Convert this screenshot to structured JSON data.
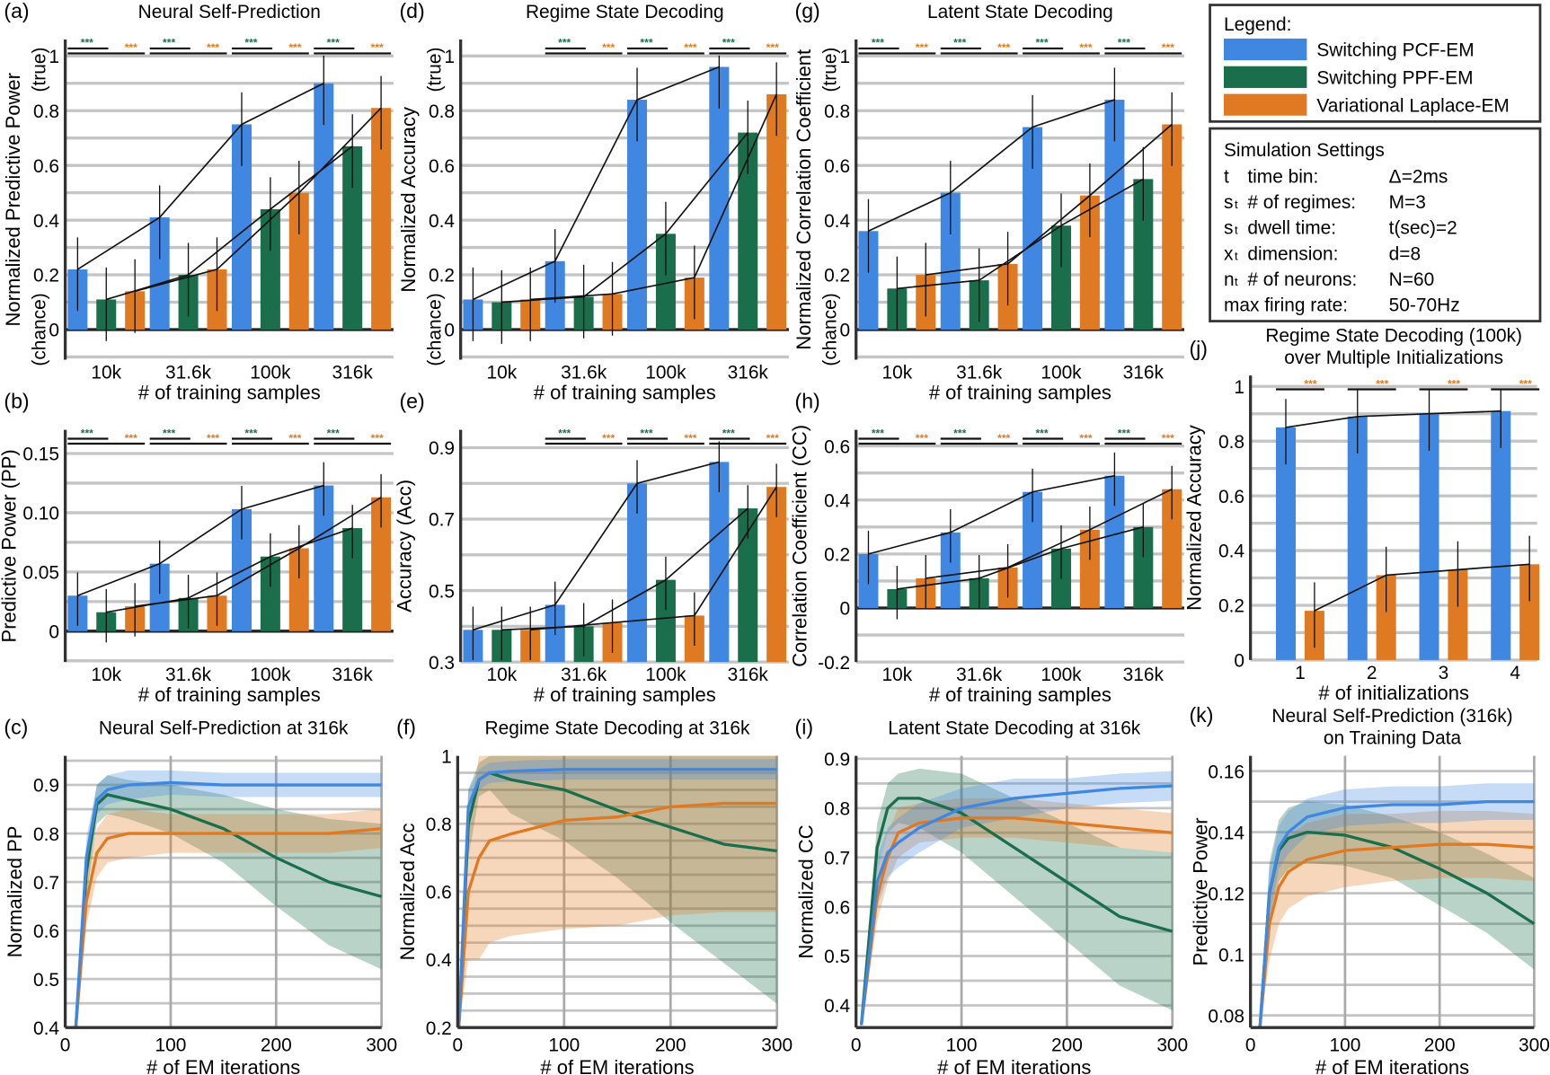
{
  "colors": {
    "blue": "#3f87e0",
    "green": "#1b6e4c",
    "orange": "#e07a22",
    "grid": "#c4c4c4"
  },
  "legend": {
    "title": "Legend:",
    "items": [
      {
        "label": "Switching PCF-EM",
        "color": "#3f87e0"
      },
      {
        "label": "Switching PPF-EM",
        "color": "#1b6e4c"
      },
      {
        "label": "Variational Laplace-EM",
        "color": "#e07a22"
      }
    ]
  },
  "settings": {
    "title": "Simulation Settings",
    "rows": [
      {
        "sym": "t",
        "sub": "",
        "label": "time bin:",
        "value": "Δ=2ms"
      },
      {
        "sym": "s",
        "sub": "t",
        "label": "# of regimes:",
        "value": "M=3"
      },
      {
        "sym": "s",
        "sub": "t",
        "label": "dwell time:",
        "value": "t(sec)=2"
      },
      {
        "sym": "x",
        "sub": "t",
        "label": "dimension:",
        "value": "d=8"
      },
      {
        "sym": "n",
        "sub": "t",
        "label": "# of neurons:",
        "value": "N=60"
      },
      {
        "sym": "",
        "sub": "",
        "label": "max firing rate:",
        "value": "50-70Hz"
      }
    ]
  },
  "chart_data": [
    {
      "id": "a",
      "panel_label": "(a)",
      "type": "bar",
      "title": "Neural Self-Prediction",
      "xlabel": "# of training samples",
      "ylabel": "Normalized Predictive Power",
      "ylabel_top": "(true)",
      "ylabel_bottom": "(chance)",
      "categories": [
        "10k",
        "31.6k",
        "100k",
        "316k"
      ],
      "ylim": [
        -0.11,
        1.06
      ],
      "grid_step": 0.1,
      "yticks": [
        0,
        0.2,
        0.4,
        0.6,
        0.8,
        1
      ],
      "ytick_labels": [
        "0",
        "0.2",
        "0.4",
        "0.6",
        "0.8",
        "1"
      ],
      "series": [
        {
          "name": "Switching PCF-EM",
          "values": [
            0.22,
            0.41,
            0.75,
            0.9
          ]
        },
        {
          "name": "Switching PPF-EM",
          "values": [
            0.11,
            0.2,
            0.44,
            0.67
          ]
        },
        {
          "name": "Variational Laplace-EM",
          "values": [
            0.14,
            0.22,
            0.5,
            0.81
          ]
        }
      ],
      "significance": [
        "***",
        "***",
        "***",
        "***"
      ]
    },
    {
      "id": "d",
      "panel_label": "(d)",
      "type": "bar",
      "title": "Regime State Decoding",
      "xlabel": "# of training samples",
      "ylabel": "Normalized Accuracy",
      "ylabel_top": "(true)",
      "ylabel_bottom": "(chance)",
      "categories": [
        "10k",
        "31.6k",
        "100k",
        "316k"
      ],
      "ylim": [
        -0.11,
        1.06
      ],
      "grid_step": 0.1,
      "yticks": [
        0,
        0.2,
        0.4,
        0.6,
        0.8,
        1
      ],
      "ytick_labels": [
        "0",
        "0.2",
        "0.4",
        "0.6",
        "0.8",
        "1"
      ],
      "series": [
        {
          "name": "Switching PCF-EM",
          "values": [
            0.11,
            0.25,
            0.84,
            0.96
          ]
        },
        {
          "name": "Switching PPF-EM",
          "values": [
            0.1,
            0.12,
            0.35,
            0.72
          ]
        },
        {
          "name": "Variational Laplace-EM",
          "values": [
            0.11,
            0.13,
            0.19,
            0.86
          ]
        }
      ],
      "significance": [
        "",
        "***",
        "***",
        "***"
      ]
    },
    {
      "id": "g",
      "panel_label": "(g)",
      "type": "bar",
      "title": "Latent State Decoding",
      "xlabel": "# of training samples",
      "ylabel": "Normalized Correlation Coefficient",
      "ylabel_top": "(true)",
      "ylabel_bottom": "(chance)",
      "categories": [
        "10k",
        "31.6k",
        "100k",
        "316k"
      ],
      "ylim": [
        -0.11,
        1.06
      ],
      "grid_step": 0.1,
      "yticks": [
        0,
        0.2,
        0.4,
        0.6,
        0.8,
        1
      ],
      "ytick_labels": [
        "0",
        "0.2",
        "0.4",
        "0.6",
        "0.8",
        "1"
      ],
      "series": [
        {
          "name": "Switching PCF-EM",
          "values": [
            0.36,
            0.5,
            0.74,
            0.84
          ]
        },
        {
          "name": "Switching PPF-EM",
          "values": [
            0.15,
            0.18,
            0.38,
            0.55
          ]
        },
        {
          "name": "Variational Laplace-EM",
          "values": [
            0.2,
            0.24,
            0.49,
            0.75
          ]
        }
      ],
      "significance": [
        "***",
        "***",
        "***",
        "***"
      ]
    },
    {
      "id": "b",
      "panel_label": "(b)",
      "type": "bar",
      "title": "",
      "xlabel": "# of training samples",
      "ylabel": "Predictive Power (PP)",
      "categories": [
        "10k",
        "31.6k",
        "100k",
        "316k"
      ],
      "ylim": [
        -0.026,
        0.17
      ],
      "grid_step": 0.025,
      "yticks": [
        0,
        0.05,
        0.1,
        0.15
      ],
      "ytick_labels": [
        "0",
        "0.05",
        "0.10",
        "0.15"
      ],
      "series": [
        {
          "name": "Switching PCF-EM",
          "values": [
            0.03,
            0.057,
            0.103,
            0.123
          ]
        },
        {
          "name": "Switching PPF-EM",
          "values": [
            0.016,
            0.028,
            0.063,
            0.087
          ]
        },
        {
          "name": "Variational Laplace-EM",
          "values": [
            0.021,
            0.03,
            0.07,
            0.113
          ]
        }
      ],
      "significance": [
        "***",
        "***",
        "***",
        "***"
      ]
    },
    {
      "id": "e",
      "panel_label": "(e)",
      "type": "bar",
      "title": "",
      "xlabel": "# of training samples",
      "ylabel": "Accuracy (Acc)",
      "categories": [
        "10k",
        "31.6k",
        "100k",
        "316k"
      ],
      "ylim": [
        0.3,
        0.95
      ],
      "grid_step": 0.1,
      "yticks": [
        0.3,
        0.5,
        0.7,
        0.9
      ],
      "ytick_labels": [
        "0.3",
        "0.5",
        "0.7",
        "0.9"
      ],
      "series": [
        {
          "name": "Switching PCF-EM",
          "values": [
            0.39,
            0.46,
            0.8,
            0.86
          ]
        },
        {
          "name": "Switching PPF-EM",
          "values": [
            0.39,
            0.4,
            0.53,
            0.73
          ]
        },
        {
          "name": "Variational Laplace-EM",
          "values": [
            0.39,
            0.41,
            0.43,
            0.79
          ]
        }
      ],
      "significance": [
        "",
        "***",
        "***",
        "***"
      ]
    },
    {
      "id": "h",
      "panel_label": "(h)",
      "type": "bar",
      "title": "",
      "xlabel": "# of training samples",
      "ylabel": "Correlation Coefficient (CC)",
      "categories": [
        "10k",
        "31.6k",
        "100k",
        "316k"
      ],
      "ylim": [
        -0.2,
        0.66
      ],
      "grid_step": 0.1,
      "yticks": [
        -0.2,
        0,
        0.2,
        0.4,
        0.6
      ],
      "ytick_labels": [
        "-0.2",
        "0",
        "0.2",
        "0.4",
        "0.6"
      ],
      "series": [
        {
          "name": "Switching PCF-EM",
          "values": [
            0.2,
            0.28,
            0.43,
            0.49
          ]
        },
        {
          "name": "Switching PPF-EM",
          "values": [
            0.07,
            0.11,
            0.22,
            0.3
          ]
        },
        {
          "name": "Variational Laplace-EM",
          "values": [
            0.11,
            0.15,
            0.29,
            0.44
          ]
        }
      ],
      "significance": [
        "***",
        "***",
        "***",
        "***"
      ]
    },
    {
      "id": "j",
      "panel_label": "(j)",
      "type": "bar",
      "title": "Regime State Decoding (100k)",
      "subtitle": "over Multiple Initializations",
      "xlabel": "# of initializations",
      "ylabel": "Normalized Accuracy",
      "categories": [
        "1",
        "2",
        "3",
        "4"
      ],
      "ylim": [
        0,
        1.04
      ],
      "grid_step": 0.1,
      "yticks": [
        0,
        0.2,
        0.4,
        0.6,
        0.8,
        1
      ],
      "ytick_labels": [
        "0",
        "0.2",
        "0.4",
        "0.6",
        "0.8",
        "1"
      ],
      "series": [
        {
          "name": "Switching PCF-EM",
          "values": [
            0.85,
            0.89,
            0.9,
            0.91
          ]
        },
        {
          "name": "Variational Laplace-EM",
          "values": [
            0.18,
            0.31,
            0.33,
            0.35
          ]
        }
      ],
      "significance": [
        "***",
        "***",
        "***",
        "***"
      ]
    },
    {
      "id": "c",
      "panel_label": "(c)",
      "type": "line",
      "title": "Neural Self-Prediction at 316k",
      "xlabel": "# of EM iterations",
      "ylabel": "Normalized PP",
      "x": [
        10,
        20,
        30,
        40,
        60,
        100,
        150,
        200,
        250,
        300
      ],
      "xlim": [
        0,
        300
      ],
      "xticks": [
        0,
        100,
        200,
        300
      ],
      "xtick_labels": [
        "0",
        "100",
        "200",
        "300"
      ],
      "ylim": [
        0.4,
        0.96
      ],
      "grid_step": 0.05,
      "yticks": [
        0.4,
        0.5,
        0.6,
        0.7,
        0.8,
        0.9
      ],
      "ytick_labels": [
        "0.4",
        "0.5",
        "0.6",
        "0.7",
        "0.8",
        "0.9"
      ],
      "series": [
        {
          "name": "Switching PPF-EM",
          "values": [
            0.4,
            0.72,
            0.86,
            0.88,
            0.87,
            0.85,
            0.81,
            0.75,
            0.7,
            0.67
          ],
          "spread": [
            0.02,
            0.05,
            0.04,
            0.04,
            0.04,
            0.05,
            0.07,
            0.1,
            0.13,
            0.15
          ]
        },
        {
          "name": "Variational Laplace-EM",
          "values": [
            0.4,
            0.66,
            0.76,
            0.79,
            0.8,
            0.8,
            0.8,
            0.8,
            0.8,
            0.81
          ],
          "spread": [
            0.02,
            0.05,
            0.05,
            0.05,
            0.05,
            0.04,
            0.04,
            0.04,
            0.04,
            0.04
          ]
        },
        {
          "name": "Switching PCF-EM",
          "values": [
            0.4,
            0.75,
            0.87,
            0.89,
            0.9,
            0.905,
            0.9,
            0.9,
            0.9,
            0.9
          ],
          "spread": [
            0.02,
            0.04,
            0.03,
            0.03,
            0.03,
            0.025,
            0.025,
            0.025,
            0.025,
            0.025
          ]
        }
      ]
    },
    {
      "id": "f",
      "panel_label": "(f)",
      "type": "line",
      "title": "Regime State Decoding at 316k",
      "xlabel": "# of EM iterations",
      "ylabel": "Normalized Acc",
      "x": [
        1,
        10,
        20,
        30,
        50,
        100,
        150,
        200,
        250,
        300
      ],
      "xlim": [
        0,
        300
      ],
      "xticks": [
        0,
        100,
        200,
        300
      ],
      "xtick_labels": [
        "0",
        "100",
        "200",
        "300"
      ],
      "ylim": [
        0.2,
        1.0
      ],
      "grid_step": 0.05,
      "yticks": [
        0.2,
        0.4,
        0.6,
        0.8,
        1
      ],
      "ytick_labels": [
        "0.2",
        "0.4",
        "0.6",
        "0.8",
        "1"
      ],
      "series": [
        {
          "name": "Switching PPF-EM",
          "values": [
            0.2,
            0.8,
            0.93,
            0.95,
            0.93,
            0.9,
            0.84,
            0.79,
            0.74,
            0.72
          ],
          "spread": [
            0.02,
            0.1,
            0.05,
            0.05,
            0.1,
            0.15,
            0.2,
            0.28,
            0.35,
            0.45
          ]
        },
        {
          "name": "Variational Laplace-EM",
          "values": [
            0.2,
            0.6,
            0.7,
            0.75,
            0.77,
            0.81,
            0.82,
            0.85,
            0.86,
            0.86
          ],
          "spread": [
            0.02,
            0.2,
            0.3,
            0.3,
            0.3,
            0.32,
            0.32,
            0.32,
            0.32,
            0.32
          ]
        },
        {
          "name": "Switching PCF-EM",
          "values": [
            0.2,
            0.85,
            0.93,
            0.95,
            0.955,
            0.96,
            0.96,
            0.96,
            0.96,
            0.96
          ],
          "spread": [
            0.02,
            0.05,
            0.03,
            0.03,
            0.03,
            0.03,
            0.03,
            0.03,
            0.03,
            0.03
          ]
        }
      ]
    },
    {
      "id": "i",
      "panel_label": "(i)",
      "type": "line",
      "title": "Latent State Decoding at 316k",
      "xlabel": "# of EM iterations",
      "ylabel": "Normalized CC",
      "x": [
        5,
        20,
        30,
        40,
        60,
        100,
        150,
        200,
        250,
        300
      ],
      "xlim": [
        0,
        300
      ],
      "xticks": [
        0,
        100,
        200,
        300
      ],
      "xtick_labels": [
        "0",
        "100",
        "200",
        "300"
      ],
      "ylim": [
        0.355,
        0.906
      ],
      "grid_step": 0.05,
      "yticks": [
        0.4,
        0.5,
        0.6,
        0.7,
        0.8,
        0.9
      ],
      "ytick_labels": [
        "0.4",
        "0.5",
        "0.6",
        "0.7",
        "0.8",
        "0.9"
      ],
      "series": [
        {
          "name": "Switching PPF-EM",
          "values": [
            0.36,
            0.72,
            0.8,
            0.82,
            0.82,
            0.79,
            0.72,
            0.65,
            0.58,
            0.55
          ],
          "spread": [
            0.02,
            0.05,
            0.05,
            0.05,
            0.06,
            0.08,
            0.1,
            0.12,
            0.14,
            0.16
          ]
        },
        {
          "name": "Variational Laplace-EM",
          "values": [
            0.36,
            0.62,
            0.7,
            0.75,
            0.77,
            0.78,
            0.78,
            0.77,
            0.76,
            0.75
          ],
          "spread": [
            0.02,
            0.05,
            0.05,
            0.05,
            0.04,
            0.04,
            0.04,
            0.04,
            0.04,
            0.04
          ]
        },
        {
          "name": "Switching PCF-EM",
          "values": [
            0.36,
            0.65,
            0.71,
            0.73,
            0.76,
            0.8,
            0.82,
            0.83,
            0.84,
            0.845
          ],
          "spread": [
            0.02,
            0.05,
            0.05,
            0.05,
            0.05,
            0.04,
            0.04,
            0.03,
            0.03,
            0.03
          ]
        }
      ]
    },
    {
      "id": "k",
      "panel_label": "(k)",
      "type": "line",
      "title": "Neural Self-Prediction (316k)",
      "subtitle": "on Training Data",
      "xlabel": "# of EM iterations",
      "ylabel": "Predictive Power",
      "x": [
        10,
        20,
        30,
        40,
        60,
        100,
        150,
        200,
        250,
        300
      ],
      "xlim": [
        0,
        300
      ],
      "xticks": [
        0,
        100,
        200,
        300
      ],
      "xtick_labels": [
        "0",
        "100",
        "200",
        "300"
      ],
      "ylim": [
        0.076,
        0.165
      ],
      "grid_step": 0.01,
      "yticks": [
        0.08,
        0.1,
        0.12,
        0.14,
        0.16
      ],
      "ytick_labels": [
        "0.08",
        "0.1",
        "0.12",
        "0.14",
        "0.16"
      ],
      "series": [
        {
          "name": "Switching PPF-EM",
          "values": [
            0.076,
            0.12,
            0.134,
            0.138,
            0.14,
            0.139,
            0.135,
            0.128,
            0.12,
            0.11
          ],
          "spread": [
            0.003,
            0.01,
            0.01,
            0.01,
            0.01,
            0.01,
            0.01,
            0.012,
            0.013,
            0.015
          ]
        },
        {
          "name": "Variational Laplace-EM",
          "values": [
            0.076,
            0.11,
            0.122,
            0.127,
            0.131,
            0.134,
            0.135,
            0.136,
            0.136,
            0.135
          ],
          "spread": [
            0.003,
            0.012,
            0.012,
            0.012,
            0.012,
            0.012,
            0.011,
            0.011,
            0.011,
            0.011
          ]
        },
        {
          "name": "Switching PCF-EM",
          "values": [
            0.076,
            0.12,
            0.135,
            0.14,
            0.145,
            0.148,
            0.149,
            0.149,
            0.15,
            0.15
          ],
          "spread": [
            0.003,
            0.008,
            0.007,
            0.007,
            0.006,
            0.006,
            0.006,
            0.006,
            0.006,
            0.006
          ]
        }
      ]
    }
  ]
}
